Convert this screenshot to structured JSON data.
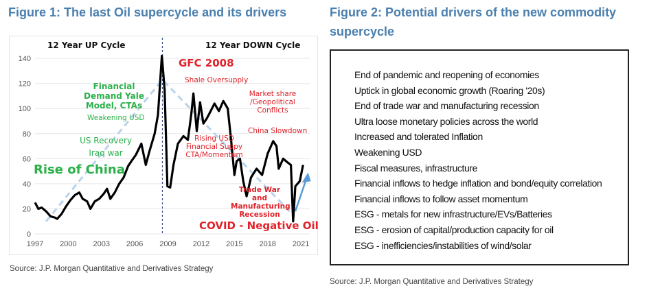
{
  "figure1": {
    "title": "Figure 1: The last Oil supercycle and its drivers",
    "source": "Source: J.P. Morgan Quantitative and Derivatives Strategy"
  },
  "figure2": {
    "title": "Figure 2: Potential drivers of the new commodity supercycle",
    "items": [
      "End of pandemic and reopening of economies",
      "Uptick in global economic growth (Roaring '20s)",
      "End of trade war and manufacturing recession",
      "Ultra loose monetary policies across the world",
      "Increased and tolerated Inflation",
      "Weakening USD",
      "Fiscal measures, infrastructure",
      "Financial inflows to hedge inflation and bond/equity correlation",
      "Financial inflows to follow asset momentum",
      "ESG - metals for new infrastructure/EVs/Batteries",
      "ESG - erosion of capital/production capacity for oil",
      "ESG - inefficiencies/instabilities of wind/solar"
    ],
    "source": "Source: J.P. Morgan Quantitative and Derivatives Strategy"
  },
  "chart_data": {
    "type": "line",
    "title": "Figure 1: The last Oil supercycle and its drivers",
    "xlabel": "",
    "ylabel": "",
    "xlim": [
      1997,
      2021.8
    ],
    "ylim": [
      0,
      145
    ],
    "xticks": [
      "1997",
      "2000",
      "2003",
      "2006",
      "2009",
      "2012",
      "2015",
      "2018",
      "2021"
    ],
    "yticks": [
      "0",
      "20",
      "40",
      "60",
      "80",
      "100",
      "120",
      "140"
    ],
    "grid": true,
    "series": [
      {
        "name": "Oil price",
        "color": "#000000",
        "x": [
          1997,
          1997.3,
          1997.6,
          1998,
          1998.4,
          1998.8,
          1999,
          1999.4,
          1999.8,
          2000.2,
          2000.6,
          2001,
          2001.3,
          2001.7,
          2002,
          2002.4,
          2002.8,
          2003.2,
          2003.5,
          2003.8,
          2004.2,
          2004.6,
          2005,
          2005.4,
          2005.7,
          2006.1,
          2006.6,
          2007,
          2007.3,
          2007.8,
          2008.1,
          2008.45,
          2008.7,
          2008.95,
          2009.2,
          2009.5,
          2009.9,
          2010.4,
          2010.8,
          2011.1,
          2011.3,
          2011.6,
          2011.9,
          2012.2,
          2012.5,
          2012.8,
          2013.2,
          2013.6,
          2014,
          2014.4,
          2014.7,
          2015.0,
          2015.2,
          2015.5,
          2015.8,
          2016.1,
          2016.5,
          2017,
          2017.5,
          2018,
          2018.5,
          2018.8,
          2019.0,
          2019.4,
          2019.8,
          2020.1,
          2020.3,
          2020.5,
          2020.9,
          2021.2
        ],
        "y": [
          25,
          20,
          21,
          18,
          14,
          13,
          12,
          16,
          22,
          27,
          31,
          33,
          28,
          26,
          20,
          26,
          28,
          32,
          36,
          28,
          33,
          40,
          45,
          54,
          58,
          63,
          72,
          55,
          65,
          80,
          95,
          142,
          115,
          38,
          37,
          55,
          72,
          78,
          75,
          95,
          112,
          82,
          105,
          88,
          92,
          97,
          104,
          98,
          106,
          100,
          75,
          47,
          58,
          60,
          42,
          30,
          45,
          52,
          47,
          64,
          74,
          70,
          52,
          60,
          57,
          55,
          10,
          38,
          42,
          55
        ]
      }
    ],
    "annotations": [
      {
        "text": "12 Year UP Cycle",
        "color": "black"
      },
      {
        "text": "12 Year DOWN Cycle",
        "color": "black"
      },
      {
        "text": "GFC 2008",
        "color": "red"
      },
      {
        "text": "Shale Oversupply",
        "color": "red"
      },
      {
        "text": "Market share /Geopolitical Conflicts",
        "color": "red"
      },
      {
        "text": "China Slowdown",
        "color": "red"
      },
      {
        "text": "Rising USD Financial Suppy CTA/Momentum",
        "color": "red"
      },
      {
        "text": "Trade War and Manufacturing Recession",
        "color": "red"
      },
      {
        "text": "COVID - Negative Oil",
        "color": "red"
      },
      {
        "text": "Financial Demand Yale Model, CTAs",
        "color": "green"
      },
      {
        "text": "Weakening USD",
        "color": "green"
      },
      {
        "text": "US Recovery Iraq war",
        "color": "green"
      },
      {
        "text": "Rise of China",
        "color": "green"
      }
    ]
  }
}
